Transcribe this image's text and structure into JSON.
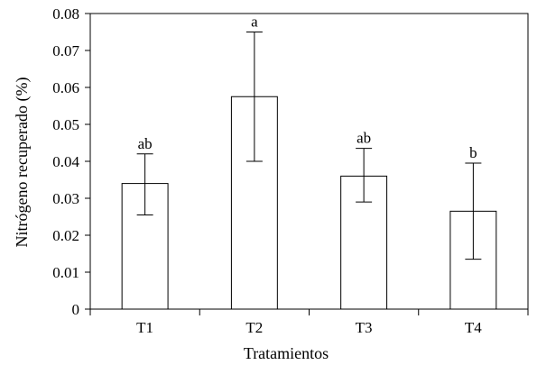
{
  "chart_data": {
    "type": "bar",
    "xlabel": "Tratamientos",
    "ylabel": "Nitrógeno recuperado (%)",
    "categories": [
      "T1",
      "T2",
      "T3",
      "T4"
    ],
    "values": [
      0.034,
      0.0575,
      0.036,
      0.0265
    ],
    "error_low": [
      0.0255,
      0.04,
      0.029,
      0.0135
    ],
    "error_high": [
      0.042,
      0.075,
      0.0435,
      0.0395
    ],
    "significance_labels": [
      "ab",
      "a",
      "ab",
      "b"
    ],
    "ylim": [
      0,
      0.08
    ],
    "yticks": [
      "0",
      "0.01",
      "0.02",
      "0.03",
      "0.04",
      "0.05",
      "0.06",
      "0.07",
      "0.08"
    ],
    "ytick_values": [
      0,
      0.01,
      0.02,
      0.03,
      0.04,
      0.05,
      0.06,
      0.07,
      0.08
    ],
    "bar_fill": "#ffffff",
    "bar_stroke": "#000000",
    "grid": false,
    "legend": "none"
  }
}
